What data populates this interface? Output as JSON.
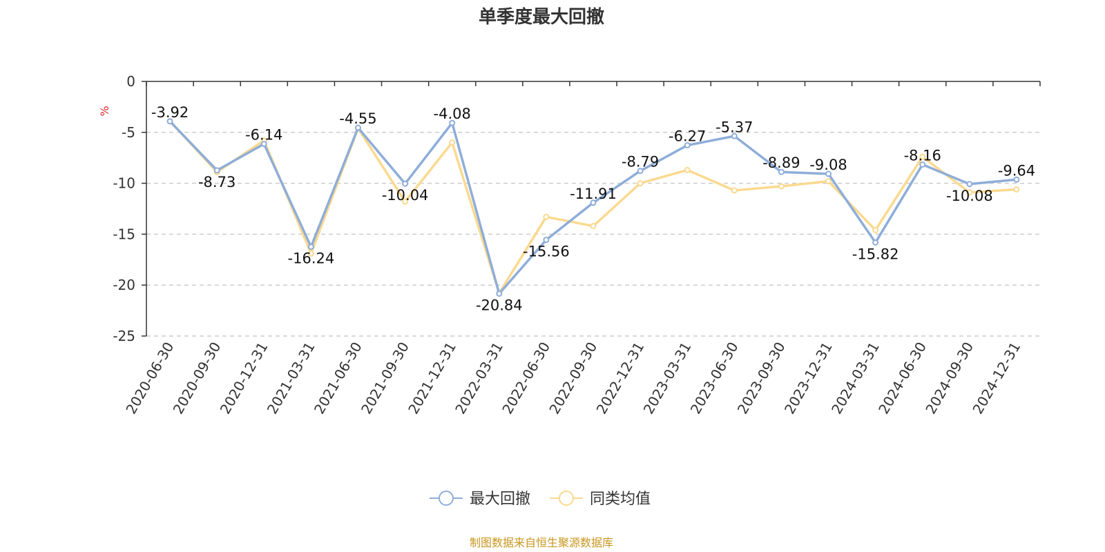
{
  "chart_data": {
    "type": "line",
    "title": "单季度最大回撤",
    "ylabel": "%",
    "ylim": [
      -25,
      0
    ],
    "yticks": [
      0,
      -5,
      -10,
      -15,
      -20,
      -25
    ],
    "grid": true,
    "legend_position": "bottom",
    "categories": [
      "2020-06-30",
      "2020-09-30",
      "2020-12-31",
      "2021-03-31",
      "2021-06-30",
      "2021-09-30",
      "2021-12-31",
      "2022-03-31",
      "2022-06-30",
      "2022-09-30",
      "2022-12-31",
      "2023-03-31",
      "2023-06-30",
      "2023-09-30",
      "2023-12-31",
      "2024-03-31",
      "2024-06-30",
      "2024-09-30",
      "2024-12-31"
    ],
    "series": [
      {
        "name": "最大回撤",
        "color": "#8eadd9",
        "labels_shown": true,
        "values": [
          -3.92,
          -8.73,
          -6.14,
          -16.24,
          -4.55,
          -10.04,
          -4.08,
          -20.84,
          -15.56,
          -11.91,
          -8.79,
          -6.27,
          -5.37,
          -8.89,
          -9.08,
          -15.82,
          -8.16,
          -10.08,
          -9.64
        ]
      },
      {
        "name": "同类均值",
        "color": "#fbd98f",
        "labels_shown": false,
        "values": [
          -3.9,
          -8.9,
          -5.8,
          -16.9,
          -4.6,
          -11.8,
          -6.0,
          -20.8,
          -13.3,
          -14.2,
          -10.0,
          -8.7,
          -10.7,
          -10.3,
          -9.8,
          -14.6,
          -7.4,
          -10.9,
          -10.6
        ]
      }
    ],
    "source_note": "制图数据来自恒生聚源数据库"
  }
}
